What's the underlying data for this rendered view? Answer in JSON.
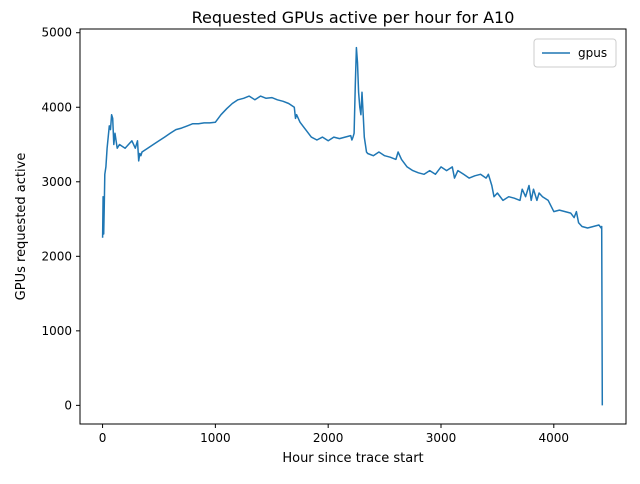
{
  "chart_data": {
    "type": "line",
    "title": "Requested GPUs active per hour for A10",
    "xlabel": "Hour since trace start",
    "ylabel": "GPUs requested active",
    "xlim": [
      -200,
      4640
    ],
    "ylim": [
      -250,
      5050
    ],
    "xticks": [
      0,
      1000,
      2000,
      3000,
      4000
    ],
    "xtick_labels": [
      "0",
      "1000",
      "2000",
      "3000",
      "4000"
    ],
    "yticks": [
      0,
      1000,
      2000,
      3000,
      4000,
      5000
    ],
    "ytick_labels": [
      "0",
      "1000",
      "2000",
      "3000",
      "4000",
      "5000"
    ],
    "grid": false,
    "legend_position": "top-right",
    "series": [
      {
        "name": "gpus",
        "color": "#1f77b4",
        "x": [
          0,
          5,
          10,
          15,
          20,
          30,
          40,
          50,
          60,
          70,
          80,
          90,
          100,
          110,
          120,
          130,
          150,
          170,
          200,
          230,
          260,
          290,
          310,
          320,
          330,
          340,
          350,
          400,
          450,
          500,
          550,
          600,
          650,
          700,
          750,
          800,
          850,
          900,
          950,
          1000,
          1050,
          1100,
          1150,
          1200,
          1250,
          1300,
          1350,
          1400,
          1450,
          1500,
          1550,
          1600,
          1650,
          1700,
          1710,
          1720,
          1750,
          1800,
          1850,
          1900,
          1950,
          2000,
          2050,
          2100,
          2150,
          2200,
          2210,
          2220,
          2230,
          2240,
          2250,
          2260,
          2270,
          2280,
          2290,
          2300,
          2310,
          2320,
          2330,
          2340,
          2350,
          2400,
          2450,
          2500,
          2550,
          2600,
          2620,
          2650,
          2700,
          2750,
          2800,
          2850,
          2900,
          2950,
          3000,
          3050,
          3100,
          3120,
          3150,
          3200,
          3250,
          3300,
          3350,
          3400,
          3420,
          3450,
          3470,
          3500,
          3550,
          3600,
          3650,
          3700,
          3720,
          3750,
          3780,
          3800,
          3820,
          3850,
          3870,
          3900,
          3950,
          4000,
          4050,
          4100,
          4150,
          4180,
          4200,
          4220,
          4250,
          4300,
          4350,
          4400,
          4420,
          4425,
          4430
        ],
        "y": [
          2250,
          2800,
          2300,
          2700,
          3100,
          3200,
          3450,
          3600,
          3750,
          3700,
          3900,
          3850,
          3500,
          3650,
          3550,
          3450,
          3500,
          3480,
          3450,
          3500,
          3550,
          3450,
          3550,
          3280,
          3380,
          3350,
          3400,
          3450,
          3500,
          3550,
          3600,
          3650,
          3700,
          3720,
          3750,
          3780,
          3780,
          3790,
          3790,
          3800,
          3900,
          3980,
          4050,
          4100,
          4120,
          4150,
          4100,
          4150,
          4120,
          4130,
          4100,
          4080,
          4050,
          4000,
          3850,
          3900,
          3800,
          3700,
          3600,
          3560,
          3600,
          3550,
          3600,
          3580,
          3600,
          3620,
          3560,
          3600,
          3650,
          4300,
          4800,
          4600,
          4200,
          4000,
          3900,
          4200,
          3900,
          3600,
          3500,
          3400,
          3380,
          3350,
          3400,
          3350,
          3330,
          3300,
          3400,
          3300,
          3200,
          3150,
          3120,
          3100,
          3150,
          3100,
          3200,
          3150,
          3200,
          3050,
          3150,
          3100,
          3050,
          3080,
          3100,
          3050,
          3100,
          2950,
          2800,
          2850,
          2750,
          2800,
          2780,
          2750,
          2900,
          2800,
          2950,
          2750,
          2900,
          2750,
          2850,
          2800,
          2750,
          2600,
          2620,
          2600,
          2580,
          2520,
          2600,
          2450,
          2400,
          2380,
          2400,
          2420,
          2380,
          2400,
          0
        ]
      }
    ]
  }
}
